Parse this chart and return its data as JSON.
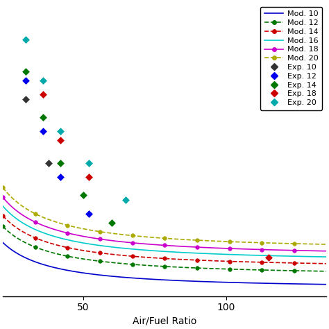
{
  "xlabel": "Air/Fuel Ratio",
  "ylabel": "",
  "xlim": [
    22,
    135
  ],
  "ylim": [
    0.3,
    3.5
  ],
  "legend_labels_mod": [
    "Mod. 10",
    "Mod. 12",
    "Mod. 14",
    "Mod. 16",
    "Mod. 18",
    "Mod. 20"
  ],
  "legend_labels_exp": [
    "Exp. 10",
    "Exp. 12",
    "Exp. 14",
    "Exp. 18",
    "Exp. 20"
  ],
  "mod_colors": [
    "#0000cc",
    "#007700",
    "#cc0000",
    "#00cccc",
    "#cc00cc",
    "#aaaa00"
  ],
  "mod_linestyles": [
    "-",
    "--",
    "--",
    "-",
    "-",
    "--"
  ],
  "mod_markers": [
    null,
    "o",
    "o",
    null,
    "o",
    "o"
  ],
  "exp_colors": [
    "#333333",
    "#0000ee",
    "#007700",
    "#cc0000",
    "#00aaaa"
  ],
  "exp_data_10": [
    [
      30,
      2.45
    ],
    [
      38,
      1.75
    ]
  ],
  "exp_data_12": [
    [
      30,
      2.65
    ],
    [
      36,
      2.1
    ],
    [
      42,
      1.6
    ],
    [
      52,
      1.2
    ]
  ],
  "exp_data_14": [
    [
      30,
      2.75
    ],
    [
      36,
      2.25
    ],
    [
      42,
      1.75
    ],
    [
      50,
      1.4
    ],
    [
      60,
      1.1
    ]
  ],
  "exp_data_18": [
    [
      36,
      2.5
    ],
    [
      42,
      2.0
    ],
    [
      52,
      1.6
    ],
    [
      115,
      0.72
    ]
  ],
  "exp_data_20": [
    [
      30,
      3.1
    ],
    [
      36,
      2.65
    ],
    [
      42,
      2.1
    ],
    [
      52,
      1.75
    ],
    [
      65,
      1.35
    ]
  ],
  "mod10_params": [
    0.38,
    28.0,
    1.3
  ],
  "mod12_params": [
    0.52,
    30.0,
    1.3
  ],
  "mod14_params": [
    0.6,
    32.0,
    1.3
  ],
  "mod16_params": [
    0.67,
    34.0,
    1.3
  ],
  "mod18_params": [
    0.73,
    36.0,
    1.3
  ],
  "mod20_params": [
    0.8,
    38.0,
    1.3
  ],
  "background_color": "#ffffff"
}
